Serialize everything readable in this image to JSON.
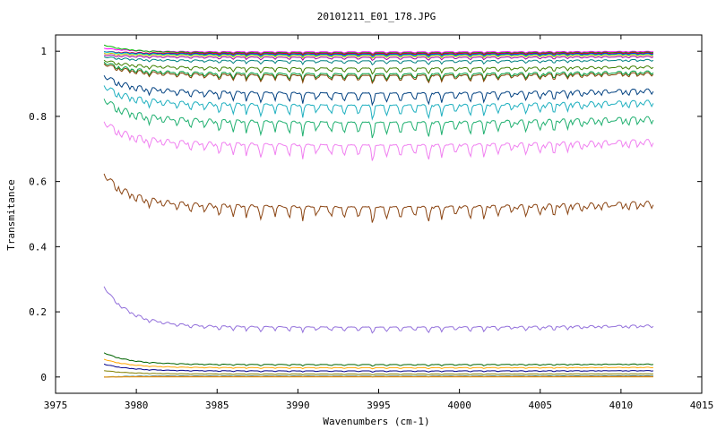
{
  "chart_data": {
    "type": "line",
    "title": "20101211_E01_178.JPG",
    "xlabel": "Wavenumbers (cm-1)",
    "ylabel": "Transmitance",
    "xlim": [
      3975,
      4015
    ],
    "ylim": [
      -0.05,
      1.05
    ],
    "x_range": [
      3978,
      4012
    ],
    "xticks": [
      3975,
      3980,
      3985,
      3990,
      3995,
      4000,
      4005,
      4010,
      4015
    ],
    "yticks": [
      0,
      0.2,
      0.4,
      0.6,
      0.8,
      1
    ],
    "ytick_labels": [
      "0",
      "0.2",
      "0.4",
      "0.6",
      "0.8",
      "1"
    ],
    "grid": false,
    "legend": "none",
    "series": [
      {
        "color": "#ff00ff",
        "start": 1.01,
        "level": 1.0,
        "depth": 0.004
      },
      {
        "color": "#00b000",
        "start": 1.02,
        "level": 0.998,
        "depth": 0.005
      },
      {
        "color": "#ff0000",
        "start": 1.0,
        "level": 0.996,
        "depth": 0.005
      },
      {
        "color": "#0000ff",
        "start": 1.0,
        "level": 0.994,
        "depth": 0.006
      },
      {
        "color": "#00cccc",
        "start": 1.0,
        "level": 0.992,
        "depth": 0.006
      },
      {
        "color": "#c0c000",
        "start": 0.995,
        "level": 0.99,
        "depth": 0.007
      },
      {
        "color": "#a000a0",
        "start": 0.99,
        "level": 0.985,
        "depth": 0.008
      },
      {
        "color": "#008080",
        "start": 0.985,
        "level": 0.975,
        "depth": 0.01
      },
      {
        "color": "#408000",
        "start": 0.975,
        "level": 0.955,
        "depth": 0.015
      },
      {
        "color": "#00a040",
        "start": 0.97,
        "level": 0.94,
        "depth": 0.02
      },
      {
        "color": "#804000",
        "start": 0.965,
        "level": 0.935,
        "depth": 0.02
      },
      {
        "color": "#004080",
        "start": 0.93,
        "level": 0.885,
        "depth": 0.03
      },
      {
        "color": "#20b0c0",
        "start": 0.9,
        "level": 0.85,
        "depth": 0.035
      },
      {
        "color": "#20b070",
        "start": 0.86,
        "level": 0.8,
        "depth": 0.04
      },
      {
        "color": "#f080f0",
        "start": 0.79,
        "level": 0.73,
        "depth": 0.04
      },
      {
        "color": "#8b4513",
        "start": 0.63,
        "level": 0.54,
        "depth": 0.04
      },
      {
        "color": "#9370db",
        "start": 0.28,
        "level": 0.16,
        "depth": 0.015
      },
      {
        "color": "#006400",
        "start": 0.075,
        "level": 0.04,
        "depth": 0.004
      },
      {
        "color": "#ffa500",
        "start": 0.055,
        "level": 0.03,
        "depth": 0.003
      },
      {
        "color": "#00008b",
        "start": 0.04,
        "level": 0.02,
        "depth": 0.003
      },
      {
        "color": "#808000",
        "start": 0.02,
        "level": 0.01,
        "depth": 0.002
      },
      {
        "color": "#008b8b",
        "start": 0.0,
        "level": 0.004,
        "depth": 0.002
      },
      {
        "color": "#ff4500",
        "start": 0.0,
        "level": 0.002,
        "depth": 0.001
      },
      {
        "color": "#daa520",
        "start": 0.0,
        "level": 0.0,
        "depth": 0.0
      }
    ]
  }
}
